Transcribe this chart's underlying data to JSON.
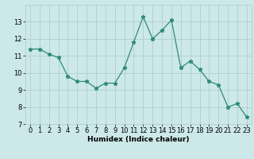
{
  "x": [
    0,
    1,
    2,
    3,
    4,
    5,
    6,
    7,
    8,
    9,
    10,
    11,
    12,
    13,
    14,
    15,
    16,
    17,
    18,
    19,
    20,
    21,
    22,
    23
  ],
  "y": [
    11.4,
    11.4,
    11.1,
    10.9,
    9.8,
    9.5,
    9.5,
    9.1,
    9.4,
    9.4,
    10.3,
    11.8,
    13.3,
    12.0,
    12.5,
    13.1,
    10.3,
    10.7,
    10.2,
    9.5,
    9.3,
    8.0,
    8.2,
    7.4
  ],
  "xlabel": "Humidex (Indice chaleur)",
  "ylabel": "",
  "xlim": [
    -0.5,
    23.5
  ],
  "ylim": [
    7,
    14
  ],
  "yticks": [
    7,
    8,
    9,
    10,
    11,
    12,
    13
  ],
  "xticks": [
    0,
    1,
    2,
    3,
    4,
    5,
    6,
    7,
    8,
    9,
    10,
    11,
    12,
    13,
    14,
    15,
    16,
    17,
    18,
    19,
    20,
    21,
    22,
    23
  ],
  "line_color": "#2e8b77",
  "marker": "*",
  "marker_size": 3.5,
  "bg_color": "#cce8e8",
  "grid_color": "#aacaca",
  "label_fontsize": 6.5,
  "tick_fontsize": 6.0
}
